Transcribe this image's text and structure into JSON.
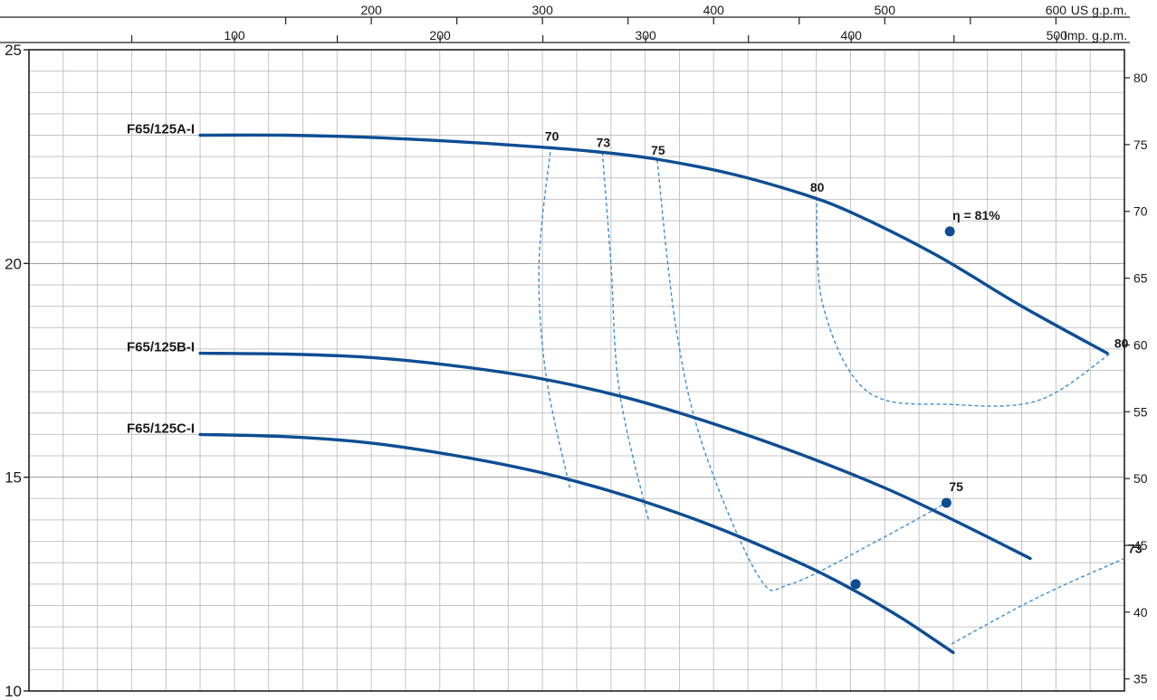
{
  "chart_data": {
    "type": "line",
    "top_axes": [
      {
        "unit": "US g.p.m.",
        "ticks": [
          200,
          300,
          400,
          500,
          600
        ]
      },
      {
        "unit": "Imp. g.p.m.",
        "ticks": [
          100,
          200,
          300,
          400,
          500
        ]
      }
    ],
    "left_axis": {
      "ylim": [
        10,
        25
      ],
      "ticks": [
        10,
        15,
        20,
        25
      ]
    },
    "right_axis": {
      "ylim": [
        34.1,
        82.1
      ],
      "ticks": [
        35,
        40,
        45,
        50,
        55,
        60,
        65,
        70,
        75,
        80
      ]
    },
    "x_range_us_gpm": [
      0,
      640
    ],
    "grid": true,
    "series": [
      {
        "name": "F65/125A-I",
        "points": [
          [
            100,
            23.0
          ],
          [
            150,
            23.0
          ],
          [
            200,
            22.95
          ],
          [
            250,
            22.85
          ],
          [
            300,
            22.72
          ],
          [
            330,
            22.62
          ],
          [
            365,
            22.45
          ],
          [
            410,
            22.1
          ],
          [
            450,
            21.65
          ],
          [
            480,
            21.2
          ],
          [
            530,
            20.2
          ],
          [
            580,
            19.0
          ],
          [
            630,
            17.9
          ]
        ]
      },
      {
        "name": "F65/125B-I",
        "points": [
          [
            100,
            17.9
          ],
          [
            150,
            17.88
          ],
          [
            200,
            17.8
          ],
          [
            250,
            17.6
          ],
          [
            300,
            17.3
          ],
          [
            350,
            16.85
          ],
          [
            400,
            16.25
          ],
          [
            450,
            15.55
          ],
          [
            500,
            14.75
          ],
          [
            540,
            14.0
          ],
          [
            585,
            13.1
          ]
        ]
      },
      {
        "name": "F65/125C-I",
        "points": [
          [
            100,
            16.0
          ],
          [
            150,
            15.95
          ],
          [
            200,
            15.8
          ],
          [
            250,
            15.5
          ],
          [
            300,
            15.1
          ],
          [
            350,
            14.55
          ],
          [
            400,
            13.85
          ],
          [
            450,
            13.0
          ],
          [
            480,
            12.4
          ],
          [
            510,
            11.7
          ],
          [
            540,
            10.9
          ]
        ]
      }
    ],
    "efficiency_lines": [
      {
        "label": "70",
        "points": [
          [
            305,
            22.75
          ],
          [
            298,
            20.0
          ],
          [
            302,
            17.4
          ],
          [
            316,
            14.75
          ]
        ]
      },
      {
        "label": "73",
        "points": [
          [
            335,
            22.6
          ],
          [
            340,
            20.0
          ],
          [
            345,
            17.0
          ],
          [
            362,
            14.0
          ]
        ]
      },
      {
        "label": "75",
        "points": [
          [
            367,
            22.42
          ],
          [
            378,
            18.5
          ],
          [
            394,
            15.7
          ],
          [
            426,
            12.7
          ],
          [
            445,
            12.5
          ],
          [
            495,
            13.5
          ],
          [
            536,
            14.4
          ]
        ]
      },
      {
        "label": "80",
        "points": [
          [
            460,
            21.55
          ],
          [
            464,
            19.0
          ],
          [
            490,
            17.0
          ],
          [
            540,
            16.7
          ],
          [
            590,
            16.8
          ],
          [
            632,
            17.9
          ]
        ]
      },
      {
        "label": "73",
        "points": [
          [
            539,
            11.1
          ],
          [
            590,
            12.2
          ],
          [
            640,
            13.1
          ]
        ]
      }
    ],
    "points": [
      {
        "label": "η = 81%",
        "x": 538,
        "y": 20.75
      },
      {
        "label": "75",
        "x": 536,
        "y": 14.4
      },
      {
        "label": "",
        "x": 483,
        "y": 12.5
      }
    ],
    "annotations": [
      {
        "text": "70",
        "x": 305,
        "y": 22.75
      },
      {
        "text": "73",
        "x": 335,
        "y": 22.6
      },
      {
        "text": "75",
        "x": 367,
        "y": 22.42
      },
      {
        "text": "80",
        "x": 460,
        "y": 21.55
      },
      {
        "text": "80",
        "x": 632,
        "y": 17.9
      },
      {
        "text": "73",
        "x": 640,
        "y": 13.1
      }
    ],
    "colors": {
      "curve": "#0e4d92",
      "efficiency": "#3a8fd0",
      "grid": "#c4c4c4",
      "axis": "#222222"
    }
  }
}
